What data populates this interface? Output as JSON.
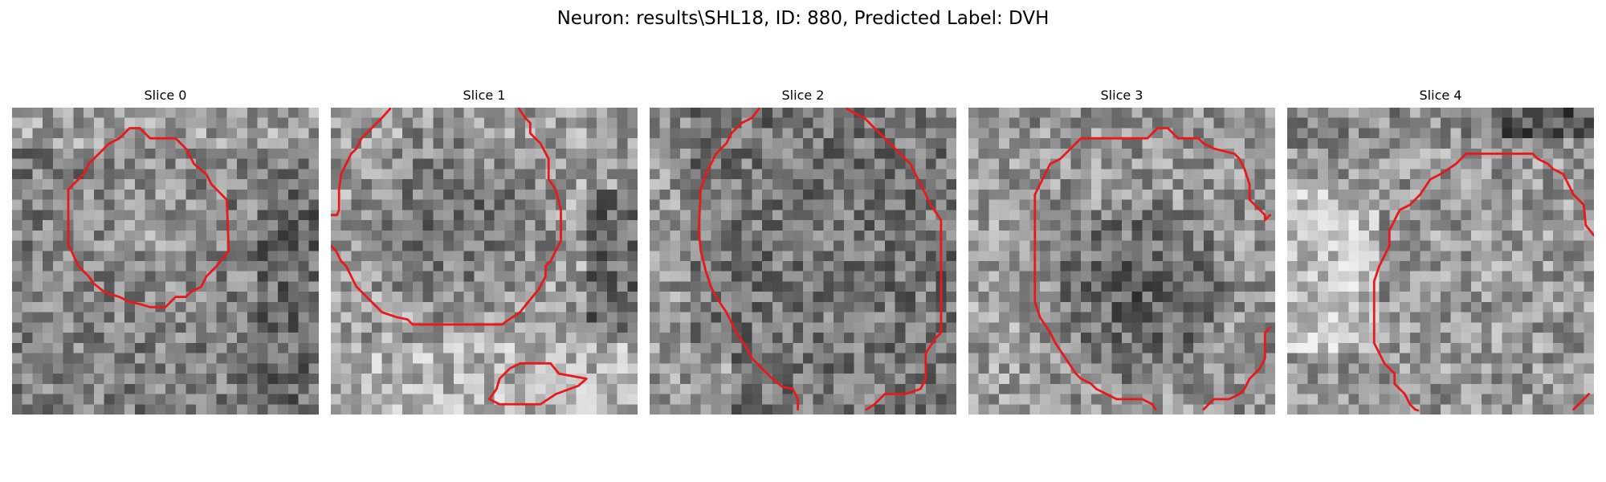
{
  "figure": {
    "title": "Neuron: results\\SHL18, ID: 880, Predicted Label: DVH"
  },
  "image": {
    "grid_size": 30,
    "colormap": "gray",
    "contour_color": "#e8191b"
  },
  "panels": [
    {
      "title": "Slice 0",
      "seed": 11,
      "contours": [
        [
          [
            11.5,
            2
          ],
          [
            12.5,
            2
          ],
          [
            13.5,
            3
          ],
          [
            16,
            3
          ],
          [
            17,
            4
          ],
          [
            17.8,
            5.5
          ],
          [
            19,
            6.5
          ],
          [
            19.5,
            7.5
          ],
          [
            21,
            9
          ],
          [
            21.2,
            14
          ],
          [
            20,
            15.5
          ],
          [
            19.5,
            16
          ],
          [
            19,
            16.5
          ],
          [
            18.5,
            17.5
          ],
          [
            17.5,
            18
          ],
          [
            17,
            18.5
          ],
          [
            16,
            18.5
          ],
          [
            15,
            19.5
          ],
          [
            13.5,
            19.5
          ],
          [
            12.5,
            19.2
          ],
          [
            11.5,
            19
          ],
          [
            10.5,
            18.5
          ],
          [
            9.5,
            18.2
          ],
          [
            9,
            18
          ],
          [
            8,
            17.2
          ],
          [
            7.5,
            16.5
          ],
          [
            6.5,
            15.5
          ],
          [
            5.8,
            14
          ],
          [
            5.5,
            13.5
          ],
          [
            5.5,
            8
          ],
          [
            6,
            7.5
          ],
          [
            7,
            6.5
          ],
          [
            7.5,
            5.5
          ],
          [
            8.5,
            4.5
          ],
          [
            9.5,
            3.5
          ],
          [
            10.5,
            3
          ],
          [
            11.5,
            2
          ]
        ]
      ]
    },
    {
      "title": "Slice 1",
      "seed": 23,
      "contours": [
        [
          [
            5.8,
            0.1
          ],
          [
            5,
            1
          ],
          [
            4,
            2
          ],
          [
            3,
            3
          ],
          [
            2.5,
            4
          ],
          [
            2,
            4.5
          ],
          [
            1.5,
            5.5
          ],
          [
            1,
            6.5
          ],
          [
            0.8,
            8
          ],
          [
            0.8,
            10
          ],
          [
            0.6,
            10.5
          ],
          [
            0,
            10.5
          ]
        ],
        [
          [
            18.4,
            0.1
          ],
          [
            19,
            1
          ],
          [
            19.5,
            1.5
          ],
          [
            19.5,
            2.5
          ],
          [
            20.5,
            3.5
          ],
          [
            21.3,
            5
          ],
          [
            21.3,
            7
          ],
          [
            22,
            8
          ],
          [
            22.5,
            10
          ],
          [
            22.5,
            13
          ],
          [
            22,
            14
          ],
          [
            21.5,
            15
          ],
          [
            21,
            15.5
          ],
          [
            21,
            16.5
          ],
          [
            20.3,
            17.8
          ],
          [
            19.3,
            19
          ],
          [
            18.5,
            20
          ],
          [
            17,
            21
          ],
          [
            16.8,
            21.2
          ],
          [
            8,
            21.2
          ],
          [
            7.5,
            20.7
          ],
          [
            6.5,
            20.5
          ],
          [
            5,
            20
          ],
          [
            4.5,
            19.5
          ],
          [
            3.5,
            18.5
          ],
          [
            2.5,
            17.5
          ],
          [
            2,
            16.5
          ],
          [
            1.5,
            15.5
          ],
          [
            1,
            15
          ],
          [
            0.5,
            14
          ],
          [
            0,
            13.5
          ]
        ],
        [
          [
            18.5,
            25
          ],
          [
            21.5,
            25
          ],
          [
            22.3,
            26
          ],
          [
            25,
            26.5
          ],
          [
            24.2,
            27.2
          ],
          [
            22,
            28
          ],
          [
            20.5,
            29
          ],
          [
            16.5,
            29
          ],
          [
            15.5,
            28.5
          ],
          [
            16.2,
            27.5
          ],
          [
            16.5,
            26.5
          ],
          [
            17.5,
            25.5
          ],
          [
            18.5,
            25
          ]
        ]
      ]
    },
    {
      "title": "Slice 2",
      "seed": 37,
      "contours": [
        [
          [
            10.7,
            0.1
          ],
          [
            10,
            1
          ],
          [
            9,
            1.5
          ],
          [
            8,
            2.5
          ],
          [
            7.5,
            3.5
          ],
          [
            6.5,
            4.5
          ],
          [
            6,
            5.5
          ],
          [
            5.5,
            6.5
          ],
          [
            5,
            8
          ],
          [
            4.8,
            12
          ],
          [
            5,
            14
          ],
          [
            5.5,
            16
          ],
          [
            6,
            17.5
          ],
          [
            6.5,
            18.5
          ],
          [
            7.5,
            20
          ],
          [
            8,
            21
          ],
          [
            8.5,
            22
          ],
          [
            9.5,
            23.5
          ],
          [
            10,
            24.5
          ],
          [
            11,
            25.5
          ],
          [
            12,
            26.5
          ],
          [
            13,
            27.3
          ],
          [
            14,
            27.5
          ],
          [
            14.5,
            28.5
          ],
          [
            14.5,
            29.5
          ]
        ],
        [
          [
            19.3,
            0.1
          ],
          [
            20,
            0.5
          ],
          [
            21,
            1
          ],
          [
            21.5,
            1.5
          ],
          [
            22.5,
            2.5
          ],
          [
            23.5,
            3.5
          ],
          [
            24.5,
            4.5
          ],
          [
            25.5,
            5.5
          ],
          [
            26,
            6.5
          ],
          [
            27.5,
            9.5
          ],
          [
            28.5,
            11
          ],
          [
            28.5,
            22
          ],
          [
            28,
            22.5
          ],
          [
            27,
            24
          ],
          [
            27,
            26.5
          ],
          [
            26.5,
            27.5
          ],
          [
            25,
            28
          ],
          [
            23,
            28
          ],
          [
            22,
            29
          ],
          [
            21.2,
            29.5
          ]
        ]
      ]
    },
    {
      "title": "Slice 3",
      "seed": 53,
      "contours": [
        [
          [
            11,
            3
          ],
          [
            17.5,
            3
          ],
          [
            18.5,
            2
          ],
          [
            19.5,
            2
          ],
          [
            20.5,
            3
          ],
          [
            22.5,
            3
          ],
          [
            23,
            3.5
          ],
          [
            24,
            4
          ],
          [
            26,
            4.5
          ],
          [
            26.5,
            5
          ],
          [
            27,
            6
          ],
          [
            27.5,
            7.5
          ],
          [
            27.5,
            9
          ],
          [
            28.5,
            10
          ],
          [
            29,
            10.5
          ],
          [
            29,
            11
          ],
          [
            29.5,
            10.5
          ]
        ],
        [
          [
            11,
            3
          ],
          [
            10,
            4
          ],
          [
            9,
            5
          ],
          [
            8,
            5.5
          ],
          [
            7.5,
            6.5
          ],
          [
            7,
            7.5
          ],
          [
            6.5,
            8.5
          ],
          [
            6.5,
            19
          ],
          [
            7,
            20.5
          ],
          [
            8,
            22
          ],
          [
            8.5,
            23
          ],
          [
            9.5,
            24.5
          ],
          [
            10.5,
            26
          ],
          [
            11,
            26.5
          ],
          [
            12,
            27
          ],
          [
            12.5,
            27.5
          ],
          [
            13.5,
            28
          ],
          [
            14.5,
            28.5
          ],
          [
            17,
            28.5
          ],
          [
            18,
            29
          ],
          [
            18.3,
            29.5
          ]
        ],
        [
          [
            23,
            29.5
          ],
          [
            23.5,
            29
          ],
          [
            24,
            28.5
          ],
          [
            25.5,
            28.5
          ],
          [
            26.5,
            28
          ],
          [
            27,
            27.5
          ],
          [
            27.5,
            26.5
          ],
          [
            28.5,
            25.5
          ],
          [
            29,
            24.5
          ],
          [
            29,
            22
          ],
          [
            29.5,
            21.5
          ]
        ]
      ]
    },
    {
      "title": "Slice 4",
      "seed": 71,
      "contours": [
        [
          [
            17.5,
            4.5
          ],
          [
            24,
            4.5
          ],
          [
            24.5,
            5
          ],
          [
            25.5,
            5.5
          ],
          [
            26,
            6
          ],
          [
            27,
            6.5
          ],
          [
            27.5,
            7.5
          ],
          [
            28,
            8.5
          ],
          [
            29,
            9.5
          ],
          [
            29.2,
            11.5
          ],
          [
            30,
            12.5
          ]
        ],
        [
          [
            17.5,
            4.5
          ],
          [
            16.5,
            5.5
          ],
          [
            15,
            6.5
          ],
          [
            14,
            7
          ],
          [
            13,
            8.5
          ],
          [
            12,
            9.5
          ],
          [
            11,
            10
          ],
          [
            10.5,
            11
          ],
          [
            10,
            12
          ],
          [
            10,
            13.5
          ],
          [
            9,
            15.5
          ],
          [
            8.5,
            17
          ],
          [
            8.5,
            23
          ],
          [
            9,
            24
          ],
          [
            9.5,
            25
          ],
          [
            10.5,
            26
          ],
          [
            10.5,
            27
          ],
          [
            11.5,
            28
          ],
          [
            12,
            29
          ],
          [
            12.5,
            29.5
          ],
          [
            12.8,
            29.6
          ]
        ],
        [
          [
            28,
            29.5
          ],
          [
            29,
            28.5
          ],
          [
            29.5,
            28
          ]
        ]
      ]
    }
  ]
}
